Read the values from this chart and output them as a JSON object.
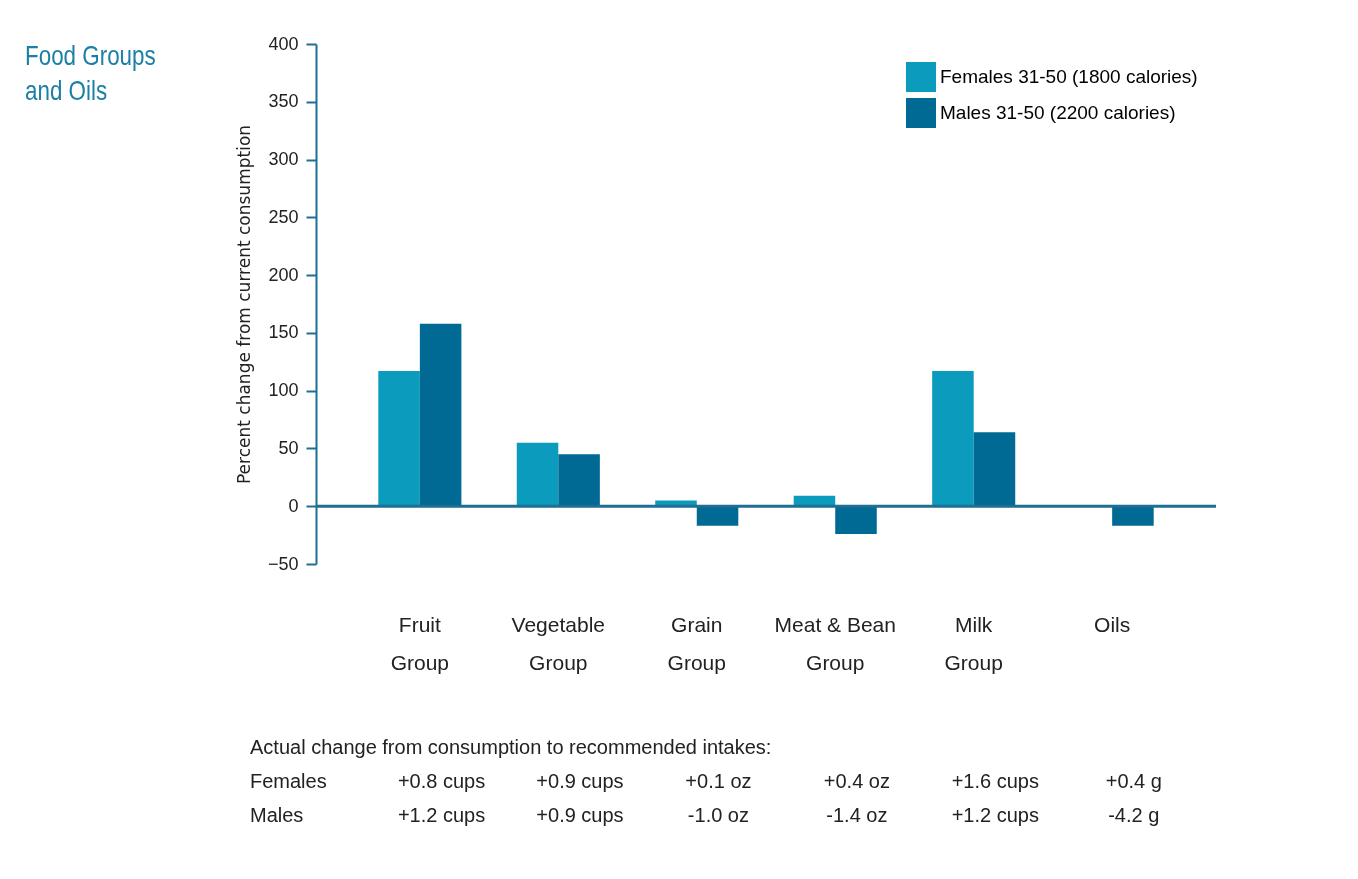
{
  "chart_data": {
    "type": "bar",
    "title": "Food Groups and Oils",
    "ylabel": "Percent change from current consumption",
    "categories": [
      "Fruit Group",
      "Vegetable Group",
      "Grain Group",
      "Meat & Bean Group",
      "Milk Group",
      "Oils"
    ],
    "series": [
      {
        "name": "Females 31-50 (1800 calories)",
        "color": "#0a9bbd",
        "values": [
          117,
          55,
          5,
          9,
          117,
          0
        ]
      },
      {
        "name": "Males 31-50 (2200 calories)",
        "color": "#006a94",
        "values": [
          158,
          45,
          -17,
          -24,
          64,
          -17
        ]
      }
    ],
    "ylim": [
      -50,
      400
    ],
    "yticks": [
      -50,
      0,
      50,
      100,
      150,
      200,
      250,
      300,
      350,
      400
    ],
    "grid": false,
    "legend": "top right",
    "ref_lines": [
      {
        "axis": "y",
        "value": 0,
        "color": "#1f6e94"
      }
    ],
    "annotations": [
      "Actual change from consumption to recommended intakes:",
      "Females",
      "+0.8 cups",
      "+0.9 cups",
      "+0.1 oz",
      "+0.4 oz",
      "+1.6 cups",
      "+0.4 g",
      "Males",
      "+1.2 cups",
      "+0.9 cups",
      "-1.0 oz",
      "-1.4 oz",
      "+1.2 cups",
      "-4.2 g"
    ]
  }
}
